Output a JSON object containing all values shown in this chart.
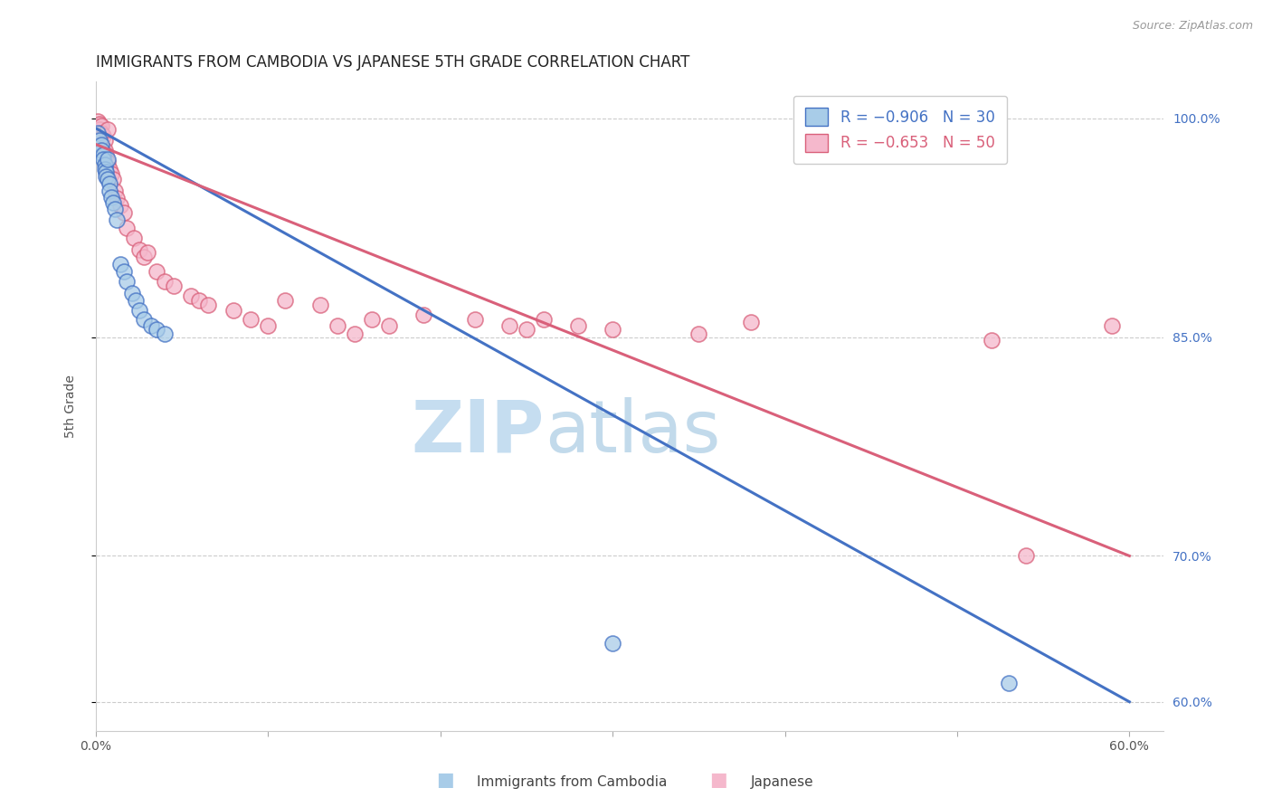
{
  "title": "IMMIGRANTS FROM CAMBODIA VS JAPANESE 5TH GRADE CORRELATION CHART",
  "source": "Source: ZipAtlas.com",
  "ylabel": "5th Grade",
  "legend_blue_label": "R = −0.906   N = 30",
  "legend_pink_label": "R = −0.653   N = 50",
  "blue_color": "#a8cce8",
  "pink_color": "#f5b8cc",
  "blue_line_color": "#4472c4",
  "pink_line_color": "#d9607a",
  "watermark_zip_color": "#c5ddf0",
  "watermark_atlas_color": "#b8cfe8",
  "background_color": "#ffffff",
  "grid_color": "#cccccc",
  "blue_scatter": [
    [
      0.001,
      0.99
    ],
    [
      0.002,
      0.985
    ],
    [
      0.003,
      0.982
    ],
    [
      0.003,
      0.978
    ],
    [
      0.004,
      0.975
    ],
    [
      0.004,
      0.972
    ],
    [
      0.005,
      0.968
    ],
    [
      0.005,
      0.965
    ],
    [
      0.006,
      0.963
    ],
    [
      0.006,
      0.96
    ],
    [
      0.007,
      0.972
    ],
    [
      0.007,
      0.958
    ],
    [
      0.008,
      0.955
    ],
    [
      0.008,
      0.95
    ],
    [
      0.009,
      0.946
    ],
    [
      0.01,
      0.942
    ],
    [
      0.011,
      0.938
    ],
    [
      0.012,
      0.93
    ],
    [
      0.014,
      0.9
    ],
    [
      0.016,
      0.895
    ],
    [
      0.018,
      0.888
    ],
    [
      0.021,
      0.88
    ],
    [
      0.023,
      0.875
    ],
    [
      0.025,
      0.868
    ],
    [
      0.028,
      0.862
    ],
    [
      0.032,
      0.858
    ],
    [
      0.035,
      0.855
    ],
    [
      0.04,
      0.852
    ],
    [
      0.3,
      0.64
    ],
    [
      0.53,
      0.613
    ]
  ],
  "pink_scatter": [
    [
      0.001,
      0.998
    ],
    [
      0.002,
      0.996
    ],
    [
      0.002,
      0.992
    ],
    [
      0.003,
      0.995
    ],
    [
      0.003,
      0.99
    ],
    [
      0.004,
      0.988
    ],
    [
      0.005,
      0.985
    ],
    [
      0.005,
      0.978
    ],
    [
      0.006,
      0.975
    ],
    [
      0.007,
      0.97
    ],
    [
      0.007,
      0.992
    ],
    [
      0.008,
      0.965
    ],
    [
      0.009,
      0.962
    ],
    [
      0.01,
      0.958
    ],
    [
      0.011,
      0.95
    ],
    [
      0.012,
      0.945
    ],
    [
      0.014,
      0.94
    ],
    [
      0.016,
      0.935
    ],
    [
      0.018,
      0.925
    ],
    [
      0.022,
      0.918
    ],
    [
      0.025,
      0.91
    ],
    [
      0.028,
      0.905
    ],
    [
      0.03,
      0.908
    ],
    [
      0.035,
      0.895
    ],
    [
      0.04,
      0.888
    ],
    [
      0.045,
      0.885
    ],
    [
      0.055,
      0.878
    ],
    [
      0.06,
      0.875
    ],
    [
      0.065,
      0.872
    ],
    [
      0.08,
      0.868
    ],
    [
      0.09,
      0.862
    ],
    [
      0.1,
      0.858
    ],
    [
      0.11,
      0.875
    ],
    [
      0.13,
      0.872
    ],
    [
      0.14,
      0.858
    ],
    [
      0.15,
      0.852
    ],
    [
      0.16,
      0.862
    ],
    [
      0.17,
      0.858
    ],
    [
      0.19,
      0.865
    ],
    [
      0.22,
      0.862
    ],
    [
      0.24,
      0.858
    ],
    [
      0.25,
      0.855
    ],
    [
      0.26,
      0.862
    ],
    [
      0.28,
      0.858
    ],
    [
      0.3,
      0.855
    ],
    [
      0.35,
      0.852
    ],
    [
      0.38,
      0.86
    ],
    [
      0.52,
      0.848
    ],
    [
      0.54,
      0.7
    ],
    [
      0.59,
      0.858
    ]
  ],
  "xlim": [
    0.0,
    0.62
  ],
  "ylim": [
    0.58,
    1.025
  ],
  "ytick_positions": [
    0.6,
    0.7,
    0.85,
    1.0
  ],
  "ytick_labels": [
    "60.0%",
    "70.0%",
    "85.0%",
    "100.0%"
  ],
  "xtick_positions": [
    0.0,
    0.1,
    0.2,
    0.3,
    0.4,
    0.5,
    0.6
  ],
  "xtick_labels": [
    "0.0%",
    "",
    "",
    "",
    "",
    "",
    "60.0%"
  ],
  "blue_line_x": [
    0.0,
    0.6
  ],
  "blue_line_y": [
    0.993,
    0.6
  ],
  "pink_line_x": [
    0.0,
    0.6
  ],
  "pink_line_y": [
    0.982,
    0.7
  ]
}
